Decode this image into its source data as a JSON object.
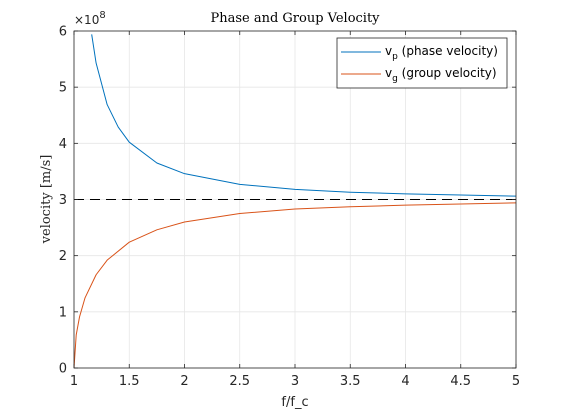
{
  "chart_data": {
    "type": "line",
    "title": "Phase and Group Velocity",
    "xlabel": "f/f_c",
    "ylabel": "velocity [m/s]",
    "y_exponent_label": "×10",
    "y_exponent_power": "8",
    "xlim": [
      1,
      5
    ],
    "ylim": [
      0,
      6
    ],
    "y_scale_factor": 100000000,
    "x_ticks": [
      1,
      1.5,
      2,
      2.5,
      3,
      3.5,
      4,
      4.5,
      5
    ],
    "x_tick_labels": [
      "1",
      "1.5",
      "2",
      "2.5",
      "3",
      "3.5",
      "4",
      "4.5",
      "5"
    ],
    "y_ticks": [
      0,
      1,
      2,
      3,
      4,
      5,
      6
    ],
    "y_tick_labels": [
      "0",
      "1",
      "2",
      "3",
      "4",
      "5",
      "6"
    ],
    "grid": true,
    "legend_position": "top-right",
    "series": [
      {
        "name_main": "v",
        "name_sub": "p",
        "name_rest": " (phase velocity)",
        "color": "#0072BD",
        "x": [
          1.16,
          1.2,
          1.3,
          1.4,
          1.5,
          1.75,
          2.0,
          2.5,
          3.0,
          3.5,
          4.0,
          4.5,
          5.0
        ],
        "values": [
          5.94,
          5.43,
          4.69,
          4.29,
          4.02,
          3.65,
          3.46,
          3.27,
          3.18,
          3.13,
          3.1,
          3.08,
          3.06
        ]
      },
      {
        "name_main": "v",
        "name_sub": "g",
        "name_rest": " (group velocity)",
        "color": "#D95319",
        "x": [
          1.0,
          1.02,
          1.05,
          1.1,
          1.2,
          1.3,
          1.5,
          1.75,
          2.0,
          2.5,
          3.0,
          3.5,
          4.0,
          4.5,
          5.0
        ],
        "values": [
          0.0,
          0.59,
          0.91,
          1.25,
          1.66,
          1.92,
          2.24,
          2.46,
          2.6,
          2.75,
          2.83,
          2.87,
          2.9,
          2.92,
          2.94
        ]
      }
    ],
    "reference_line": {
      "y": 3,
      "style": "dashed",
      "color": "#000000"
    }
  }
}
